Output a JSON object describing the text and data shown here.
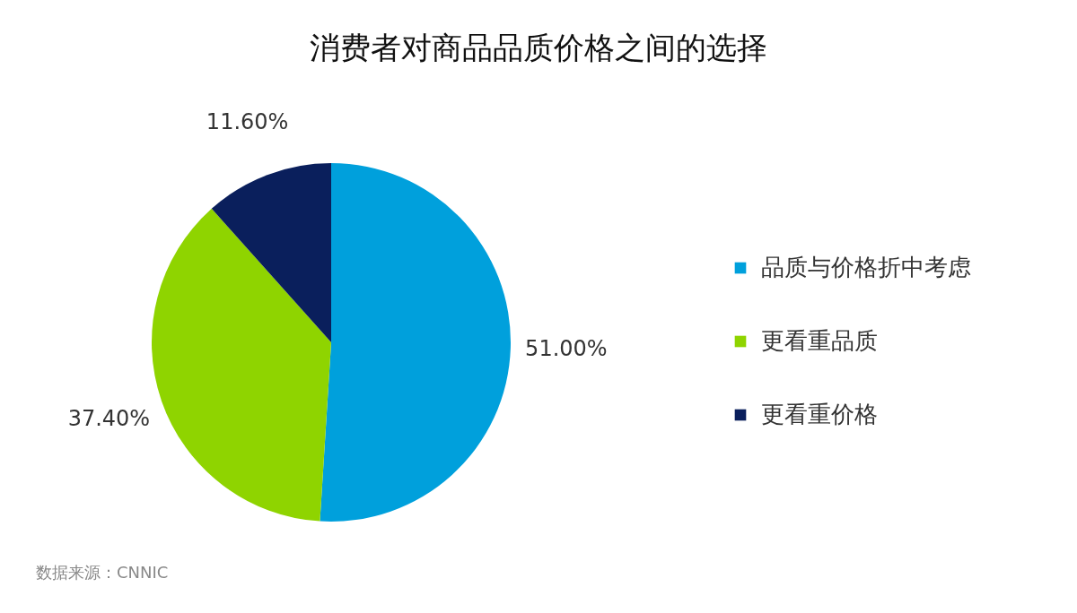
{
  "chart_data": {
    "type": "pie",
    "title": "消费者对商品品质价格之间的选择",
    "categories": [
      "品质与价格折中考虑",
      "更看重品质",
      "更看重价格"
    ],
    "values": [
      51,
      37.4,
      11.6
    ],
    "colors": [
      "#00a0dc",
      "#8fd400",
      "#0a1f5c"
    ],
    "value_labels": [
      "51.00%",
      "37.40%",
      "11.60%"
    ],
    "legend": "right",
    "annotations": [
      "数据来源：CNNIC"
    ]
  }
}
